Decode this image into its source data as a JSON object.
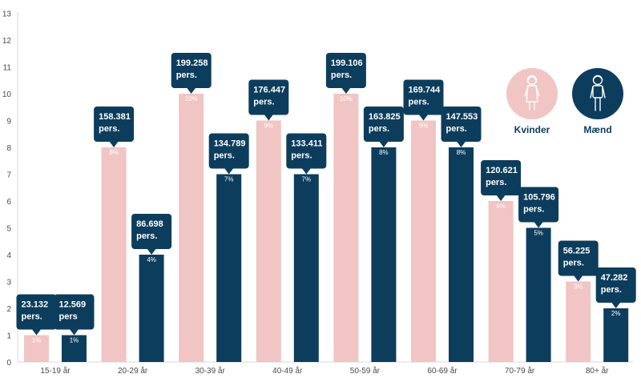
{
  "chart_data": {
    "type": "bar",
    "categories": [
      "15-19 år",
      "20-29 år",
      "30-39 år",
      "40-49 år",
      "50-59 år",
      "60-69 år",
      "70-79 år",
      "80+ år"
    ],
    "ylim": [
      0,
      13
    ],
    "yticks": [
      "0",
      "1",
      "2",
      "3",
      "4",
      "5",
      "6",
      "7",
      "8",
      "9",
      "10",
      "11",
      "12",
      "13"
    ],
    "grid": false,
    "legend_position": "top-right",
    "series": [
      {
        "name": "Kvinder",
        "color": "#f0c5c3",
        "icon": "woman-icon",
        "values": [
          1,
          8,
          10,
          9,
          10,
          9,
          6,
          3
        ],
        "pct_labels": [
          "1%",
          "8%",
          "10%",
          "9%",
          "10%",
          "9%",
          "6%",
          "3%"
        ],
        "callouts": [
          [
            "23.132",
            "pers."
          ],
          [
            "158.381",
            "pers."
          ],
          [
            "199.258",
            "pers."
          ],
          [
            "176.447",
            "pers."
          ],
          [
            "199.106",
            "pers."
          ],
          [
            "169.744",
            "pers."
          ],
          [
            "120.621",
            "pers."
          ],
          [
            "56.225",
            "pers."
          ]
        ]
      },
      {
        "name": "Mænd",
        "color": "#0d3d5c",
        "icon": "man-icon",
        "values": [
          1,
          4,
          7,
          7,
          8,
          8,
          5,
          2
        ],
        "pct_labels": [
          "1%",
          "4%",
          "7%",
          "7%",
          "8%",
          "8%",
          "5%",
          "2%"
        ],
        "callouts": [
          [
            "12.569",
            "pers"
          ],
          [
            "86.698",
            "pers."
          ],
          [
            "134.789",
            "pers."
          ],
          [
            "133.411",
            "pers."
          ],
          [
            "163.825",
            "pers."
          ],
          [
            "147.553",
            "pers."
          ],
          [
            "105.796",
            "pers."
          ],
          [
            "47.282",
            "pers."
          ]
        ]
      }
    ]
  }
}
